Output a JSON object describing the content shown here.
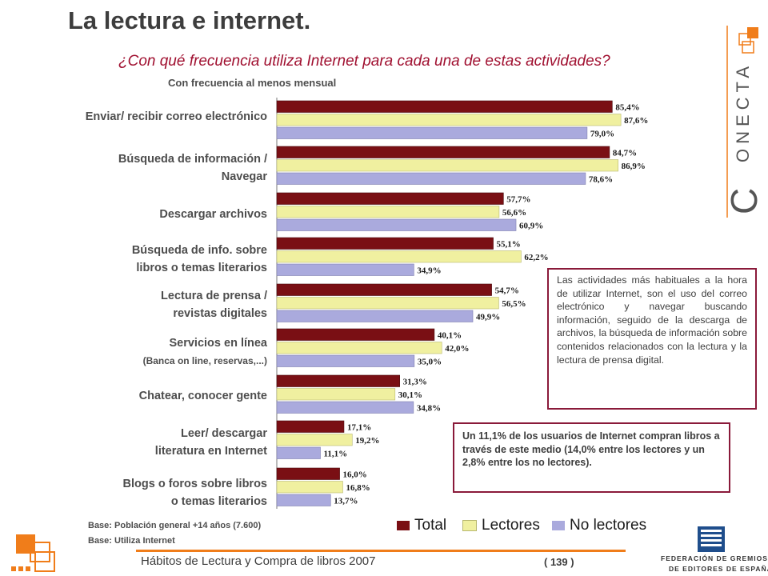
{
  "page": {
    "title": "La lectura e internet.",
    "question": "¿Con qué frecuencia utiliza Internet para cada una de estas actividades?",
    "subtitle": "Con frecuencia al menos mensual",
    "note1": "Las actividades más habituales a la hora de utilizar Internet, son el uso del correo electrónico y navegar buscando información, seguido de la descarga de archivos, la búsqueda de información sobre contenidos relacionados con la lectura y la lectura de prensa digital.",
    "note2": "Un 11,1% de los usuarios de Internet compran libros a través de este medio (14,0% entre los lectores y un 2,8% entre los no lectores).",
    "base1": "Base: Población general +14 años (7.600)",
    "base2": "Base: Utiliza Internet",
    "footer": "Hábitos de Lectura y Compra de libros 2007",
    "page_number": "( 139 )",
    "brand": "ONECTA",
    "brand_initial": "C",
    "federation_line1": "FEDERACIÓN DE GREMIOS",
    "federation_line2": "DE EDITORES DE ESPAÑA",
    "accent_color": "#a01030",
    "orange_color": "#f07d1a"
  },
  "labels": {
    "cat0": {
      "l1": "Enviar/ recibir correo electrónico"
    },
    "cat1": {
      "l1": "Búsqueda de información /",
      "l2": "Navegar"
    },
    "cat2": {
      "l1": "Descargar archivos"
    },
    "cat3": {
      "l1": "Búsqueda de info. sobre",
      "l2": "libros o temas literarios"
    },
    "cat4": {
      "l1": "Lectura de prensa /",
      "l2": "revistas digitales"
    },
    "cat5": {
      "l1": "Servicios en línea",
      "l2": "(Banca on line, reservas,...)"
    },
    "cat6": {
      "l1": "Chatear, conocer gente"
    },
    "cat7": {
      "l1": "Leer/ descargar",
      "l2": "literatura en Internet"
    },
    "cat8": {
      "l1": "Blogs o foros sobre libros",
      "l2": "o temas literarios"
    }
  },
  "chart_data": {
    "type": "bar",
    "orientation": "horizontal",
    "title": "¿Con qué frecuencia utiliza Internet para cada una de estas actividades?",
    "subtitle": "Con frecuencia al menos mensual",
    "categories": [
      "Enviar/ recibir correo electrónico",
      "Búsqueda de información / Navegar",
      "Descargar archivos",
      "Búsqueda de info. sobre libros o temas literarios",
      "Lectura de prensa / revistas digitales",
      "Servicios en línea (Banca on line, reservas,...)",
      "Chatear, conocer gente",
      "Leer/ descargar literatura en Internet",
      "Blogs o foros sobre libros o temas literarios"
    ],
    "series": [
      {
        "name": "Total",
        "color": "#7a0f14",
        "values": [
          85.4,
          84.7,
          57.7,
          55.1,
          54.7,
          40.1,
          31.3,
          17.1,
          16.0
        ],
        "labels": [
          "85,4%",
          "84,7%",
          "57,7%",
          "55,1%",
          "54,7%",
          "40,1%",
          "31,3%",
          "17,1%",
          "16,0%"
        ]
      },
      {
        "name": "Lectores",
        "color": "#f0f0a0",
        "values": [
          87.6,
          86.9,
          56.6,
          62.2,
          56.5,
          42.0,
          30.1,
          19.2,
          16.8
        ],
        "labels": [
          "87,6%",
          "86,9%",
          "56,6%",
          "62,2%",
          "56,5%",
          "42,0%",
          "30,1%",
          "19,2%",
          "16,8%"
        ]
      },
      {
        "name": "No lectores",
        "color": "#aaaadd",
        "values": [
          79.0,
          78.6,
          60.9,
          34.9,
          49.9,
          35.0,
          34.8,
          11.1,
          13.7
        ],
        "labels": [
          "79,0%",
          "78,6%",
          "60,9%",
          "34,9%",
          "49,9%",
          "35,0%",
          "34,8%",
          "11,1%",
          "13,7%"
        ]
      }
    ],
    "xlim": [
      0,
      100
    ],
    "grid": false,
    "legend": "bottom"
  }
}
